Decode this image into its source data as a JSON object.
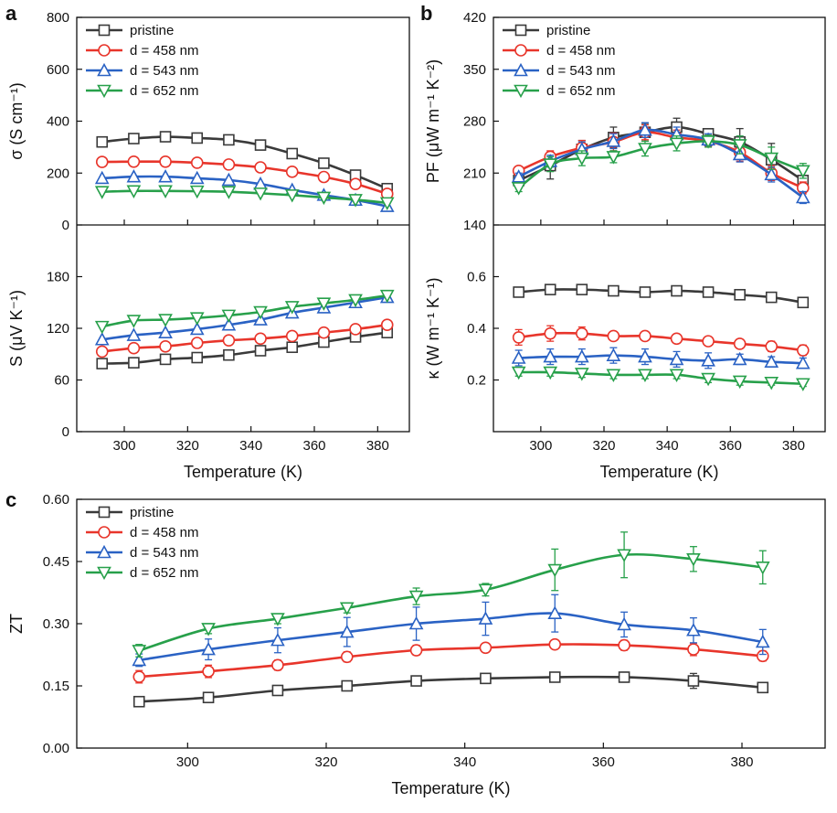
{
  "colors": {
    "pristine": "#3a3a3a",
    "d458": "#e8352b",
    "d543": "#2a62c4",
    "d652": "#27a04a"
  },
  "panels": {
    "a": {
      "letter": "a"
    },
    "b": {
      "letter": "b"
    },
    "c": {
      "letter": "c"
    }
  },
  "chart_data": [
    {
      "id": "a_top",
      "type": "line",
      "title": "",
      "xlabel": "",
      "ylabel": "σ (S cm⁻¹)",
      "x": [
        293,
        303,
        313,
        323,
        333,
        343,
        353,
        363,
        373,
        383
      ],
      "xlim": [
        285,
        390
      ],
      "ylim": [
        0,
        800
      ],
      "yticks": [
        "0",
        "200",
        "400",
        "600",
        "800"
      ],
      "legend": "top-left",
      "series": [
        {
          "name": "pristine",
          "marker": "square",
          "values": [
            320,
            333,
            340,
            335,
            328,
            308,
            275,
            238,
            192,
            140
          ]
        },
        {
          "name": "d = 458 nm",
          "marker": "circle",
          "values": [
            243,
            244,
            244,
            240,
            233,
            222,
            205,
            185,
            158,
            120
          ]
        },
        {
          "name": "d = 543 nm",
          "marker": "triangle-up",
          "values": [
            180,
            186,
            186,
            180,
            173,
            158,
            135,
            115,
            96,
            72
          ]
        },
        {
          "name": "d = 652 nm",
          "marker": "triangle-down",
          "values": [
            128,
            131,
            131,
            130,
            128,
            122,
            115,
            106,
            97,
            85
          ]
        }
      ]
    },
    {
      "id": "a_bottom",
      "type": "line",
      "title": "",
      "xlabel": "Temperature (K)",
      "ylabel": "S (μV K⁻¹)",
      "x": [
        293,
        303,
        313,
        323,
        333,
        343,
        353,
        363,
        373,
        383
      ],
      "xlim": [
        285,
        390
      ],
      "ylim": [
        0,
        240
      ],
      "xticks": [
        "300",
        "320",
        "340",
        "360",
        "380"
      ],
      "yticks": [
        "0",
        "60",
        "120",
        "180"
      ],
      "series": [
        {
          "name": "pristine",
          "marker": "square",
          "values": [
            79,
            80,
            84,
            86,
            89,
            94,
            98,
            104,
            110,
            115
          ]
        },
        {
          "name": "d = 458 nm",
          "marker": "circle",
          "values": [
            93,
            97,
            99,
            103,
            106,
            108,
            111,
            115,
            119,
            124
          ]
        },
        {
          "name": "d = 543 nm",
          "marker": "triangle-up",
          "values": [
            107,
            112,
            115,
            119,
            124,
            130,
            138,
            144,
            150,
            156
          ]
        },
        {
          "name": "d = 652 nm",
          "marker": "triangle-down",
          "values": [
            122,
            129,
            130,
            132,
            135,
            139,
            145,
            149,
            153,
            158
          ]
        }
      ]
    },
    {
      "id": "b_top",
      "type": "line",
      "title": "",
      "xlabel": "",
      "ylabel": "PF (μW m⁻¹ K⁻²)",
      "x": [
        293,
        303,
        313,
        323,
        333,
        343,
        353,
        363,
        373,
        383
      ],
      "xlim": [
        285,
        390
      ],
      "ylim": [
        140,
        420
      ],
      "yticks": [
        "140",
        "210",
        "280",
        "350",
        "420"
      ],
      "legend": "top-left",
      "series": [
        {
          "name": "pristine",
          "marker": "square",
          "values": [
            200,
            220,
            242,
            258,
            265,
            272,
            263,
            252,
            228,
            200
          ],
          "errors": [
            6,
            18,
            12,
            14,
            12,
            12,
            6,
            18,
            22,
            14
          ]
        },
        {
          "name": "d = 458 nm",
          "marker": "circle",
          "values": [
            213,
            232,
            244,
            252,
            265,
            258,
            253,
            238,
            210,
            190
          ],
          "errors": [
            5,
            8,
            10,
            12,
            10,
            10,
            8,
            12,
            10,
            8
          ]
        },
        {
          "name": "d = 543 nm",
          "marker": "triangle-up",
          "values": [
            205,
            226,
            242,
            253,
            268,
            262,
            255,
            235,
            208,
            177
          ],
          "errors": [
            5,
            8,
            10,
            10,
            10,
            10,
            8,
            10,
            10,
            8
          ]
        },
        {
          "name": "d = 652 nm",
          "marker": "triangle-down",
          "values": [
            190,
            222,
            230,
            232,
            243,
            250,
            253,
            248,
            230,
            213
          ],
          "errors": [
            5,
            10,
            10,
            8,
            10,
            10,
            8,
            12,
            15,
            10
          ]
        }
      ]
    },
    {
      "id": "b_bottom",
      "type": "line",
      "title": "",
      "xlabel": "Temperature (K)",
      "ylabel": "κ (W m⁻¹ K⁻¹)",
      "x": [
        293,
        303,
        313,
        323,
        333,
        343,
        353,
        363,
        373,
        383
      ],
      "xlim": [
        285,
        390
      ],
      "ylim": [
        0,
        0.8
      ],
      "xticks": [
        "300",
        "320",
        "340",
        "360",
        "380"
      ],
      "yticks": [
        "0.2",
        "0.4",
        "0.6"
      ],
      "series": [
        {
          "name": "pristine",
          "marker": "square",
          "values": [
            0.54,
            0.55,
            0.55,
            0.545,
            0.54,
            0.545,
            0.54,
            0.53,
            0.52,
            0.5
          ],
          "errors": [
            0.015,
            0.015,
            0.015,
            0.015,
            0.015,
            0.015,
            0.015,
            0.015,
            0.015,
            0.015
          ]
        },
        {
          "name": "d = 458 nm",
          "marker": "circle",
          "values": [
            0.365,
            0.38,
            0.38,
            0.37,
            0.37,
            0.36,
            0.35,
            0.34,
            0.33,
            0.315
          ],
          "errors": [
            0.03,
            0.03,
            0.025,
            0.015,
            0.015,
            0.015,
            0.015,
            0.015,
            0.02,
            0.02
          ]
        },
        {
          "name": "d = 543 nm",
          "marker": "triangle-up",
          "values": [
            0.285,
            0.29,
            0.29,
            0.295,
            0.29,
            0.28,
            0.275,
            0.28,
            0.27,
            0.265
          ],
          "errors": [
            0.03,
            0.03,
            0.03,
            0.03,
            0.03,
            0.03,
            0.03,
            0.02,
            0.02,
            0.02
          ]
        },
        {
          "name": "d = 652 nm",
          "marker": "triangle-down",
          "values": [
            0.23,
            0.23,
            0.225,
            0.22,
            0.22,
            0.22,
            0.205,
            0.195,
            0.19,
            0.185
          ],
          "errors": [
            0.015,
            0.015,
            0.015,
            0.015,
            0.015,
            0.015,
            0.015,
            0.015,
            0.01,
            0.01
          ]
        }
      ]
    },
    {
      "id": "c",
      "type": "line",
      "title": "",
      "xlabel": "Temperature (K)",
      "ylabel": "ZT",
      "x": [
        293,
        303,
        313,
        323,
        333,
        343,
        353,
        363,
        373,
        383
      ],
      "xlim": [
        284,
        392
      ],
      "ylim": [
        0,
        0.6
      ],
      "xticks": [
        "300",
        "320",
        "340",
        "360",
        "380"
      ],
      "yticks": [
        "0.00",
        "0.15",
        "0.30",
        "0.45",
        "0.60"
      ],
      "legend": "top-left",
      "series": [
        {
          "name": "pristine",
          "marker": "square",
          "values": [
            0.112,
            0.122,
            0.139,
            0.15,
            0.162,
            0.168,
            0.171,
            0.171,
            0.162,
            0.146
          ],
          "errors": [
            0.008,
            0.008,
            0.01,
            0.01,
            0.01,
            0.01,
            0.01,
            0.012,
            0.018,
            0.012
          ]
        },
        {
          "name": "d = 458 nm",
          "marker": "circle",
          "values": [
            0.172,
            0.185,
            0.2,
            0.22,
            0.236,
            0.242,
            0.25,
            0.248,
            0.238,
            0.222
          ],
          "errors": [
            0.015,
            0.015,
            0.012,
            0.012,
            0.012,
            0.01,
            0.01,
            0.012,
            0.015,
            0.012
          ]
        },
        {
          "name": "d = 543 nm",
          "marker": "triangle-up",
          "values": [
            0.212,
            0.238,
            0.26,
            0.28,
            0.3,
            0.312,
            0.325,
            0.298,
            0.284,
            0.256
          ],
          "errors": [
            0.015,
            0.025,
            0.03,
            0.035,
            0.04,
            0.04,
            0.045,
            0.03,
            0.03,
            0.03
          ]
        },
        {
          "name": "d = 652 nm",
          "marker": "triangle-down",
          "values": [
            0.235,
            0.288,
            0.312,
            0.338,
            0.366,
            0.382,
            0.43,
            0.466,
            0.456,
            0.436
          ],
          "errors": [
            0.015,
            0.012,
            0.012,
            0.012,
            0.02,
            0.015,
            0.05,
            0.055,
            0.03,
            0.04
          ]
        }
      ]
    }
  ]
}
